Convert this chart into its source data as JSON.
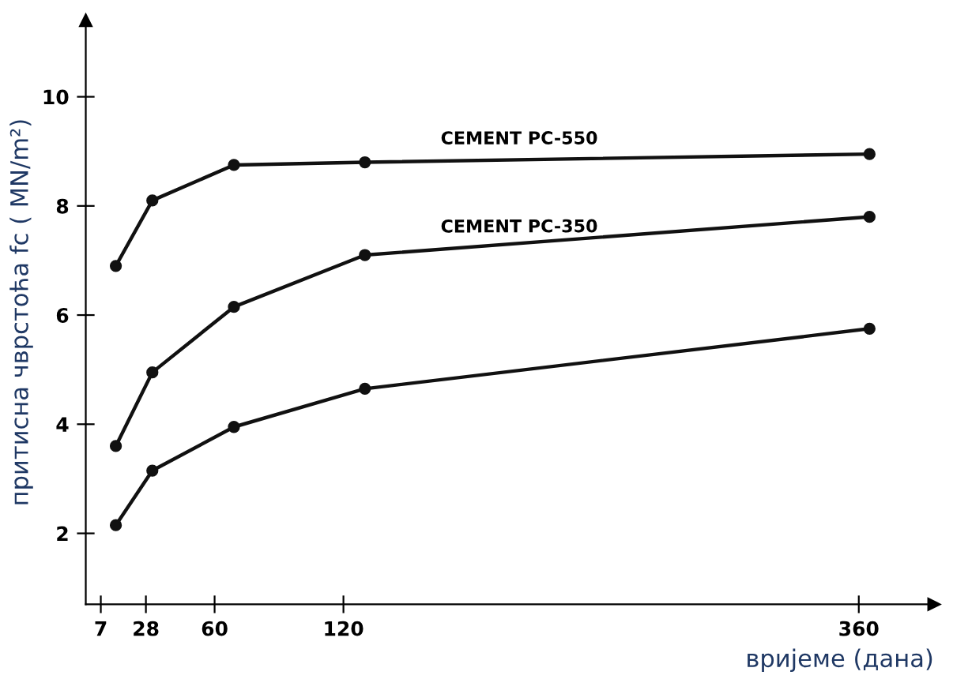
{
  "chart_data": {
    "type": "line",
    "xlabel": "вријеме (дана)",
    "ylabel": "притисна чврстоћа fc ( MN/m²)",
    "x": [
      14,
      31,
      69,
      130,
      365
    ],
    "series": [
      {
        "name": "CEMENT PC-550",
        "color": "#111111",
        "values": [
          6.9,
          8.1,
          8.75,
          8.8,
          8.95
        ]
      },
      {
        "name": "CEMENT PC-350",
        "color": "#111111",
        "values": [
          3.6,
          4.95,
          6.15,
          7.1,
          7.8
        ]
      },
      {
        "color": "#111111",
        "values": [
          2.15,
          3.15,
          3.95,
          4.65,
          5.75
        ]
      }
    ],
    "xlim": [
      0,
      395
    ],
    "ylim": [
      0.7,
      11.4
    ],
    "xticks": [
      7,
      28,
      60,
      120,
      360
    ],
    "yticks": [
      2,
      4,
      6,
      8,
      10
    ],
    "marker": "circle",
    "line_style": "solid",
    "grid": false,
    "legend": false
  }
}
